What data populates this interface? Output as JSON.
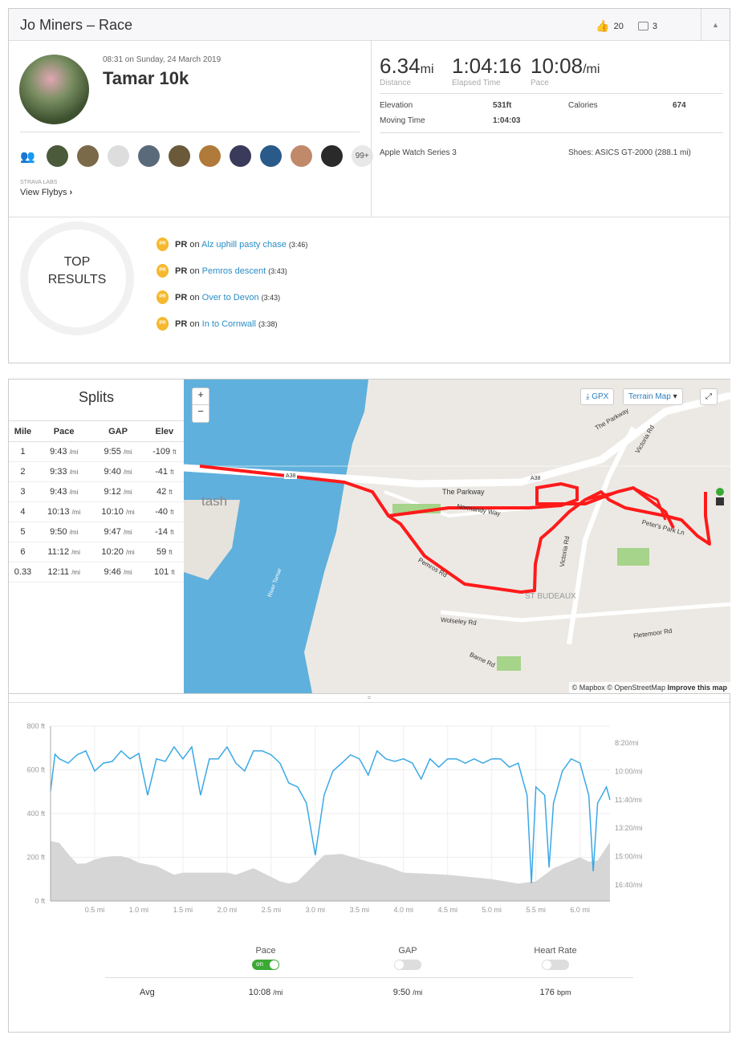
{
  "header": {
    "title": "Jo Miners – Race",
    "kudos": "20",
    "comments": "3"
  },
  "activity": {
    "datetime": "08:31 on Sunday, 24 March 2019",
    "name": "Tamar 10k",
    "labs": "STRAVA LABS",
    "flybys": "View Flybys",
    "more_athletes": "99+"
  },
  "stats": {
    "distance": "6.34",
    "distance_unit": "mi",
    "distance_label": "Distance",
    "elapsed": "1:04:16",
    "elapsed_label": "Elapsed Time",
    "pace": "10:08",
    "pace_unit": "/mi",
    "pace_label": "Pace",
    "elevation_label": "Elevation",
    "elevation": "531ft",
    "calories_label": "Calories",
    "calories": "674",
    "moving_label": "Moving Time",
    "moving": "1:04:03",
    "device": "Apple Watch Series 3",
    "shoes": "Shoes: ASICS GT-2000 (288.1 mi)"
  },
  "top_results": {
    "title1": "TOP",
    "title2": "RESULTS",
    "items": [
      {
        "badge": "PR",
        "prefix": "on",
        "segment": "Alz uphill pasty chase",
        "time": "(3:46)"
      },
      {
        "badge": "PR",
        "prefix": "on",
        "segment": "Pemros descent",
        "time": "(3:43)"
      },
      {
        "badge": "PR",
        "prefix": "on",
        "segment": "Over to Devon",
        "time": "(3:43)"
      },
      {
        "badge": "PR",
        "prefix": "on",
        "segment": "In to Cornwall",
        "time": "(3:38)"
      }
    ]
  },
  "splits": {
    "title": "Splits",
    "headers": [
      "Mile",
      "Pace",
      "GAP",
      "Elev"
    ],
    "rows": [
      [
        "1",
        "9:43",
        "/mi",
        "9:55",
        "/mi",
        "-109",
        "ft"
      ],
      [
        "2",
        "9:33",
        "/mi",
        "9:40",
        "/mi",
        "-41",
        "ft"
      ],
      [
        "3",
        "9:43",
        "/mi",
        "9:12",
        "/mi",
        "42",
        "ft"
      ],
      [
        "4",
        "10:13",
        "/mi",
        "10:10",
        "/mi",
        "-40",
        "ft"
      ],
      [
        "5",
        "9:50",
        "/mi",
        "9:47",
        "/mi",
        "-14",
        "ft"
      ],
      [
        "6",
        "11:12",
        "/mi",
        "10:20",
        "/mi",
        "59",
        "ft"
      ],
      [
        "0.33",
        "12:11",
        "/mi",
        "9:46",
        "/mi",
        "101",
        "ft"
      ]
    ]
  },
  "map": {
    "zoom_in": "+",
    "zoom_out": "−",
    "gpx": "GPX",
    "map_type": "Terrain Map",
    "attribution": "© Mapbox © OpenStreetMap",
    "improve": "Improve this map",
    "labels": [
      "The Parkway",
      "Normandy Way",
      "Victoria Rd",
      "Pemros Rd",
      "Wolseley Rd",
      "ST BUDEAUX",
      "Fletemoor Rd",
      "Barne Rd",
      "Peter's Park Ln",
      "River Tamar",
      "A38",
      "A38",
      "tash",
      "The Parkway",
      "Victoria Rd"
    ]
  },
  "chart_data": {
    "type": "line",
    "xlabel": "",
    "ylabel": "",
    "x_ticks": [
      "0.5 mi",
      "1.0 mi",
      "1.5 mi",
      "2.0 mi",
      "2.5 mi",
      "3.0 mi",
      "3.5 mi",
      "4.0 mi",
      "4.5 mi",
      "5.0 mi",
      "5.5 mi",
      "6.0 mi"
    ],
    "y_left_ticks": [
      "0 ft",
      "200 ft",
      "400 ft",
      "600 ft",
      "800 ft"
    ],
    "y_right_ticks": [
      "8:20/mi",
      "10:00/mi",
      "11:40/mi",
      "13:20/mi",
      "15:00/mi",
      "16:40/mi"
    ],
    "xlim": [
      0,
      6.34
    ],
    "ylim_left": [
      0,
      800
    ],
    "elevation": {
      "name": "Elevation (ft)",
      "x": [
        0,
        0.1,
        0.2,
        0.3,
        0.4,
        0.5,
        0.6,
        0.7,
        0.8,
        0.9,
        1.0,
        1.2,
        1.3,
        1.4,
        1.5,
        1.7,
        2.0,
        2.1,
        2.3,
        2.5,
        2.6,
        2.7,
        2.8,
        3.0,
        3.1,
        3.3,
        3.6,
        3.8,
        4.0,
        4.5,
        5.0,
        5.3,
        5.5,
        5.7,
        6.0,
        6.1,
        6.2,
        6.34
      ],
      "values": [
        275,
        265,
        215,
        170,
        172,
        190,
        200,
        205,
        205,
        195,
        175,
        160,
        140,
        120,
        130,
        130,
        130,
        120,
        150,
        110,
        90,
        80,
        90,
        170,
        210,
        215,
        180,
        160,
        130,
        120,
        100,
        80,
        90,
        150,
        200,
        180,
        185,
        270
      ]
    },
    "pace": {
      "name": "Pace (sec/mi)",
      "x": [
        0,
        0.05,
        0.1,
        0.2,
        0.3,
        0.4,
        0.5,
        0.6,
        0.7,
        0.8,
        0.9,
        1.0,
        1.1,
        1.2,
        1.3,
        1.4,
        1.5,
        1.6,
        1.7,
        1.8,
        1.9,
        2.0,
        2.1,
        2.2,
        2.3,
        2.4,
        2.5,
        2.6,
        2.7,
        2.8,
        2.9,
        3.0,
        3.1,
        3.2,
        3.3,
        3.4,
        3.5,
        3.6,
        3.7,
        3.8,
        3.9,
        4.0,
        4.1,
        4.2,
        4.3,
        4.4,
        4.5,
        4.6,
        4.7,
        4.8,
        4.9,
        5.0,
        5.1,
        5.2,
        5.3,
        5.4,
        5.45,
        5.5,
        5.6,
        5.65,
        5.7,
        5.8,
        5.9,
        6.0,
        6.1,
        6.15,
        6.2,
        6.3,
        6.34
      ],
      "values": [
        670,
        540,
        556,
        571,
        542,
        528,
        599,
        571,
        565,
        528,
        556,
        537,
        684,
        556,
        565,
        514,
        556,
        514,
        684,
        556,
        556,
        514,
        571,
        599,
        528,
        528,
        542,
        571,
        641,
        655,
        712,
        895,
        684,
        599,
        571,
        542,
        556,
        613,
        528,
        556,
        565,
        556,
        571,
        627,
        556,
        585,
        556,
        556,
        571,
        556,
        571,
        556,
        556,
        585,
        571,
        684,
        994,
        655,
        684,
        938,
        712,
        599,
        556,
        571,
        684,
        952,
        712,
        655,
        700
      ]
    },
    "stats_legend": [
      {
        "label": "Pace",
        "toggle": "on",
        "avg": "10:08",
        "unit": "/mi"
      },
      {
        "label": "GAP",
        "toggle": "off",
        "avg": "9:50",
        "unit": "/mi"
      },
      {
        "label": "Heart Rate",
        "toggle": "off",
        "avg": "176",
        "unit": "bpm"
      }
    ],
    "avg_label": "Avg"
  },
  "colors": {
    "accent": "#fc4c02",
    "link": "#2a8dc4",
    "pace_line": "#3aa8e6",
    "route": "#ff1a1a",
    "water": "#5fb0dc"
  }
}
